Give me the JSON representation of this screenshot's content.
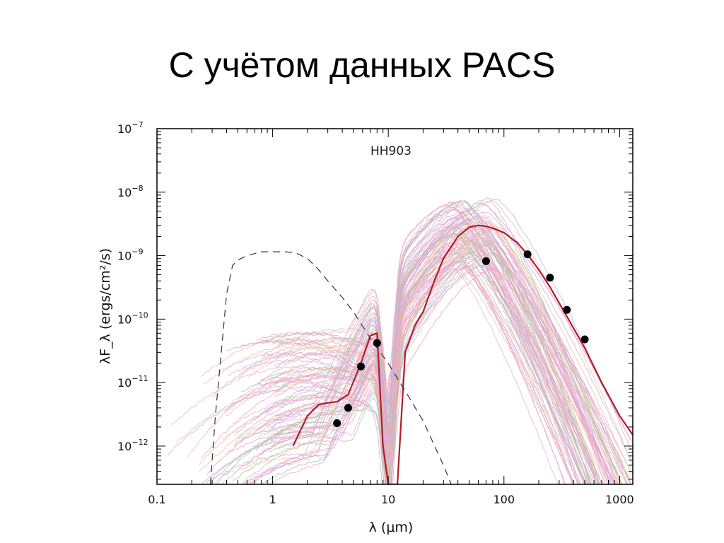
{
  "slide": {
    "title": "С учётом данных PACS"
  },
  "chart_data": {
    "type": "line",
    "title": "HH903",
    "xlabel": "λ (μm)",
    "ylabel": "λF_λ (ergs/cm²/s)",
    "xscale": "log",
    "yscale": "log",
    "xlim": [
      0.1,
      1300
    ],
    "ylim": [
      2.5e-13,
      1e-07
    ],
    "x_ticks": [
      {
        "value": 0.1,
        "label": "0.1"
      },
      {
        "value": 1,
        "label": "1"
      },
      {
        "value": 10,
        "label": "10"
      },
      {
        "value": 100,
        "label": "100"
      },
      {
        "value": 1000,
        "label": "1000"
      }
    ],
    "y_ticks": [
      {
        "value": 1e-07,
        "mantissa": "10",
        "exp": "−7"
      },
      {
        "value": 1e-08,
        "mantissa": "10",
        "exp": "−8"
      },
      {
        "value": 1e-09,
        "mantissa": "10",
        "exp": "−9"
      },
      {
        "value": 1e-10,
        "mantissa": "10",
        "exp": "−10"
      },
      {
        "value": 1e-11,
        "mantissa": "10",
        "exp": "−11"
      },
      {
        "value": 1e-12,
        "mantissa": "10",
        "exp": "−12"
      }
    ],
    "colors": {
      "best_fit": "#b01c2e",
      "stellar": "#333333",
      "points": "#000000",
      "fits": [
        "#e9a3c9",
        "#d8a6d6",
        "#c6b3de",
        "#f0aab4",
        "#a9c7a0",
        "#f3c0a0",
        "#e7b1d9"
      ]
    },
    "observed_points": {
      "x": [
        3.6,
        4.5,
        5.8,
        8.0,
        70,
        160,
        250,
        350,
        500
      ],
      "y": [
        2.3e-12,
        4e-12,
        1.8e-11,
        4.2e-11,
        8.2e-10,
        1.05e-09,
        4.5e-10,
        1.4e-10,
        4.8e-11
      ]
    },
    "series": [
      {
        "role": "best_fit",
        "x": [
          1.5,
          2,
          2.5,
          3,
          3.6,
          4.5,
          5.8,
          7,
          8,
          9,
          10,
          12,
          14,
          17,
          20,
          25,
          30,
          40,
          50,
          60,
          70,
          80,
          100,
          130,
          160,
          200,
          250,
          350,
          500,
          700,
          1000,
          1300
        ],
        "y": [
          1e-12,
          3e-12,
          4.5e-12,
          4.8e-12,
          5e-12,
          6.5e-12,
          2e-11,
          5.5e-11,
          6e-11,
          1e-12,
          2.5e-13,
          2.5e-13,
          3e-11,
          8e-11,
          1.3e-10,
          4e-10,
          9e-10,
          2e-09,
          2.8e-09,
          3e-09,
          2.9e-09,
          2.7e-09,
          2.3e-09,
          1.6e-09,
          1.05e-09,
          6e-10,
          3.2e-10,
          1.1e-10,
          3.5e-11,
          1e-11,
          3e-12,
          1.5e-12
        ]
      },
      {
        "role": "stellar",
        "x": [
          0.29,
          0.32,
          0.36,
          0.4,
          0.45,
          0.5,
          0.6,
          0.8,
          1.0,
          1.3,
          1.6,
          2.0,
          2.5,
          3.0,
          4.0,
          5.0,
          7.0,
          10,
          15,
          20,
          30,
          35
        ],
        "y": [
          2.5e-13,
          3e-12,
          3e-11,
          2.5e-10,
          7e-10,
          8.5e-10,
          1e-09,
          1.15e-09,
          1.15e-09,
          1.15e-09,
          1.1e-09,
          9e-10,
          6e-10,
          4e-10,
          2.2e-10,
          1.3e-10,
          5e-11,
          2e-11,
          6e-12,
          2.5e-12,
          5e-13,
          2.5e-13
        ]
      }
    ],
    "fit_curves": {
      "count": 90,
      "x_range": [
        0.1,
        1300
      ],
      "peak_x": [
        35,
        90
      ],
      "peak_y": [
        6e-10,
        8e-09
      ]
    }
  }
}
